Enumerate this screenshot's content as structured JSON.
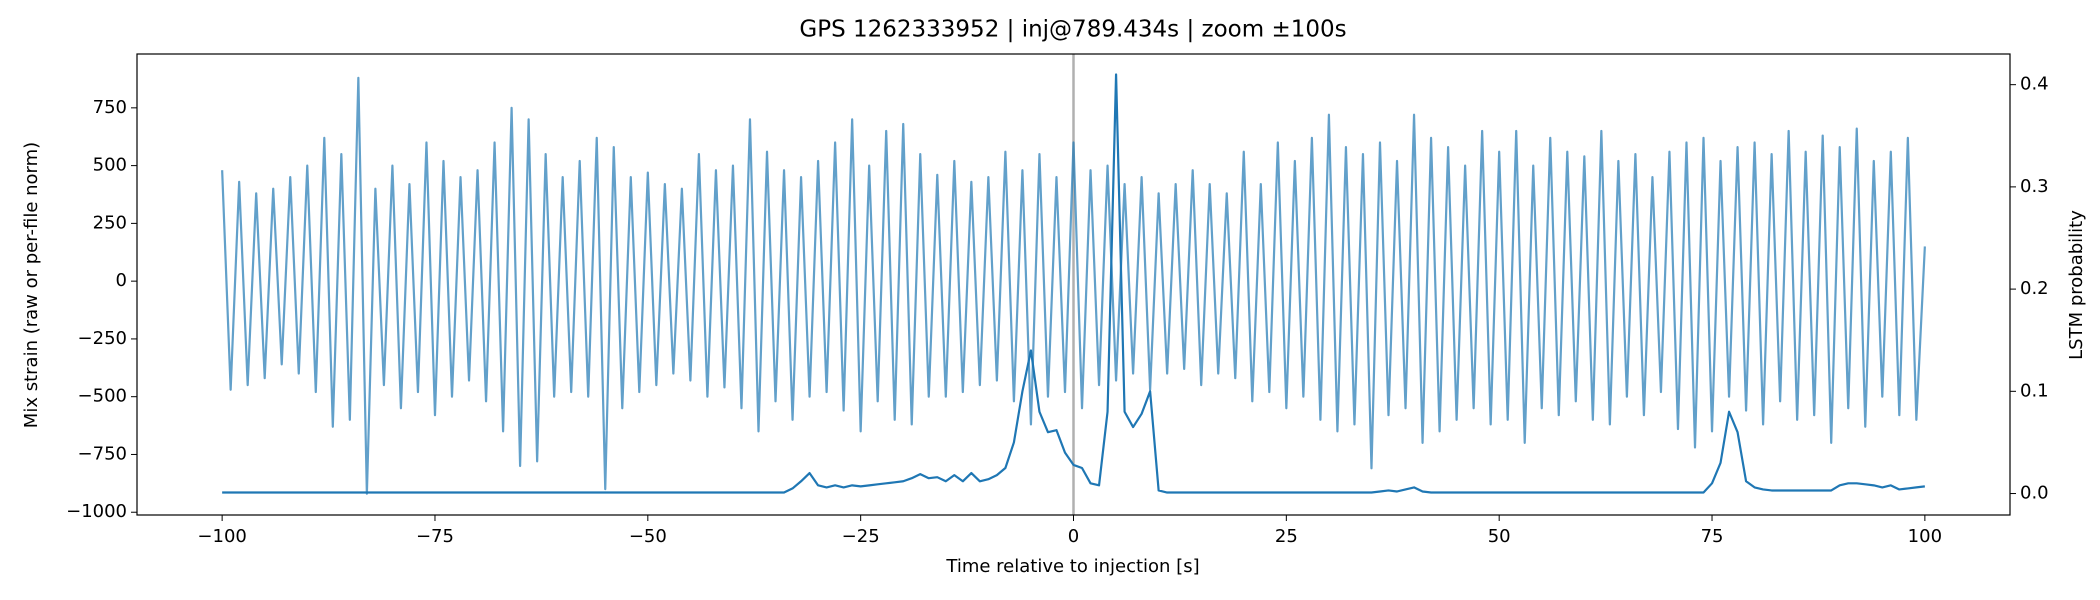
{
  "chart_data": {
    "type": "line",
    "title": "GPS 1262333952 | inj@789.434s | zoom ±100s",
    "xlabel": "Time relative to injection [s]",
    "ylabel": "Mix strain (raw or per-file norm)",
    "y2label": "LSTM probability",
    "xlim": [
      -110,
      110
    ],
    "ylim": [
      -1012,
      983
    ],
    "y2lim": [
      -0.021,
      0.43
    ],
    "xticks": [
      {
        "value": -100,
        "label": "−100"
      },
      {
        "value": -75,
        "label": "−75"
      },
      {
        "value": -50,
        "label": "−50"
      },
      {
        "value": -25,
        "label": "−25"
      },
      0,
      25,
      50,
      75,
      100
    ],
    "yticks": [
      {
        "value": -1000,
        "label": "−1000"
      },
      {
        "value": -750,
        "label": "−750"
      },
      {
        "value": -500,
        "label": "−500"
      },
      {
        "value": -250,
        "label": "−250"
      },
      0,
      250,
      500,
      750
    ],
    "y2ticks": [
      {
        "value": 0,
        "label": "0.0"
      },
      0.1,
      0.2,
      0.3,
      0.4
    ],
    "vline": 0,
    "vline_color": "#b0b0b0",
    "x": [
      -100,
      -99,
      -98,
      -97,
      -96,
      -95,
      -94,
      -93,
      -92,
      -91,
      -90,
      -89,
      -88,
      -87,
      -86,
      -85,
      -84,
      -83,
      -82,
      -81,
      -80,
      -79,
      -78,
      -77,
      -76,
      -75,
      -74,
      -73,
      -72,
      -71,
      -70,
      -69,
      -68,
      -67,
      -66,
      -65,
      -64,
      -63,
      -62,
      -61,
      -60,
      -59,
      -58,
      -57,
      -56,
      -55,
      -54,
      -53,
      -52,
      -51,
      -50,
      -49,
      -48,
      -47,
      -46,
      -45,
      -44,
      -43,
      -42,
      -41,
      -40,
      -39,
      -38,
      -37,
      -36,
      -35,
      -34,
      -33,
      -32,
      -31,
      -30,
      -29,
      -28,
      -27,
      -26,
      -25,
      -24,
      -23,
      -22,
      -21,
      -20,
      -19,
      -18,
      -17,
      -16,
      -15,
      -14,
      -13,
      -12,
      -11,
      -10,
      -9,
      -8,
      -7,
      -6,
      -5,
      -4,
      -3,
      -2,
      -1,
      0,
      1,
      2,
      3,
      4,
      5,
      6,
      7,
      8,
      9,
      10,
      11,
      12,
      13,
      14,
      15,
      16,
      17,
      18,
      19,
      20,
      21,
      22,
      23,
      24,
      25,
      26,
      27,
      28,
      29,
      30,
      31,
      32,
      33,
      34,
      35,
      36,
      37,
      38,
      39,
      40,
      41,
      42,
      43,
      44,
      45,
      46,
      47,
      48,
      49,
      50,
      51,
      52,
      53,
      54,
      55,
      56,
      57,
      58,
      59,
      60,
      61,
      62,
      63,
      64,
      65,
      66,
      67,
      68,
      69,
      70,
      71,
      72,
      73,
      74,
      75,
      76,
      77,
      78,
      79,
      80,
      81,
      82,
      83,
      84,
      85,
      86,
      87,
      88,
      89,
      90,
      91,
      92,
      93,
      94,
      95,
      96,
      97,
      98,
      99,
      100
    ],
    "series": [
      {
        "axis": "y",
        "color": "#1f77b4",
        "opacity": 0.7,
        "values": [
          480,
          -470,
          430,
          -450,
          380,
          -420,
          400,
          -360,
          450,
          -400,
          500,
          -480,
          620,
          -630,
          550,
          -600,
          880,
          -920,
          400,
          -450,
          500,
          -550,
          420,
          -480,
          600,
          -580,
          520,
          -500,
          450,
          -430,
          480,
          -520,
          600,
          -650,
          750,
          -800,
          700,
          -780,
          550,
          -500,
          450,
          -480,
          520,
          -500,
          620,
          -900,
          580,
          -550,
          450,
          -480,
          470,
          -450,
          420,
          -400,
          400,
          -430,
          550,
          -500,
          480,
          -460,
          500,
          -550,
          700,
          -650,
          560,
          -520,
          480,
          -600,
          450,
          -500,
          520,
          -480,
          600,
          -560,
          700,
          -650,
          500,
          -520,
          650,
          -600,
          680,
          -620,
          550,
          -500,
          460,
          -500,
          520,
          -480,
          430,
          -450,
          450,
          -430,
          560,
          -520,
          480,
          -620,
          550,
          -500,
          450,
          -480,
          600,
          -550,
          480,
          -450,
          500,
          -430,
          420,
          -400,
          450,
          -470,
          380,
          -400,
          420,
          -380,
          480,
          -450,
          420,
          -400,
          380,
          -420,
          560,
          -520,
          420,
          -480,
          600,
          -550,
          520,
          -500,
          620,
          -600,
          720,
          -650,
          580,
          -620,
          550,
          -810,
          600,
          -580,
          520,
          -550,
          720,
          -700,
          620,
          -650,
          580,
          -600,
          500,
          -550,
          650,
          -620,
          560,
          -600,
          650,
          -700,
          500,
          -550,
          620,
          -580,
          560,
          -520,
          540,
          -600,
          650,
          -620,
          520,
          -500,
          550,
          -580,
          450,
          -480,
          560,
          -640,
          600,
          -720,
          620,
          -650,
          520,
          -500,
          580,
          -560,
          600,
          -620,
          550,
          -520,
          650,
          -600,
          560,
          -580,
          630,
          -700,
          580,
          -550,
          660,
          -630,
          520,
          -500,
          560,
          -580,
          620,
          -600,
          150
        ]
      },
      {
        "axis": "y2",
        "color": "#1f77b4",
        "opacity": 1,
        "values": [
          0.001,
          0.001,
          0.001,
          0.001,
          0.001,
          0.001,
          0.001,
          0.001,
          0.001,
          0.001,
          0.001,
          0.001,
          0.001,
          0.001,
          0.001,
          0.001,
          0.001,
          0.001,
          0.001,
          0.001,
          0.001,
          0.001,
          0.001,
          0.001,
          0.001,
          0.001,
          0.001,
          0.001,
          0.001,
          0.001,
          0.001,
          0.001,
          0.001,
          0.001,
          0.001,
          0.001,
          0.001,
          0.001,
          0.001,
          0.001,
          0.001,
          0.001,
          0.001,
          0.001,
          0.001,
          0.001,
          0.001,
          0.001,
          0.001,
          0.001,
          0.001,
          0.001,
          0.001,
          0.001,
          0.001,
          0.001,
          0.001,
          0.001,
          0.001,
          0.001,
          0.001,
          0.001,
          0.001,
          0.001,
          0.001,
          0.001,
          0.001,
          0.005,
          0.012,
          0.02,
          0.008,
          0.006,
          0.008,
          0.006,
          0.008,
          0.007,
          0.008,
          0.009,
          0.01,
          0.011,
          0.012,
          0.015,
          0.019,
          0.015,
          0.016,
          0.012,
          0.018,
          0.012,
          0.02,
          0.012,
          0.014,
          0.018,
          0.025,
          0.05,
          0.1,
          0.14,
          0.08,
          0.06,
          0.062,
          0.04,
          0.028,
          0.025,
          0.01,
          0.008,
          0.08,
          0.41,
          0.08,
          0.065,
          0.078,
          0.1,
          0.003,
          0.001,
          0.001,
          0.001,
          0.001,
          0.001,
          0.001,
          0.001,
          0.001,
          0.001,
          0.001,
          0.001,
          0.001,
          0.001,
          0.001,
          0.001,
          0.001,
          0.001,
          0.001,
          0.001,
          0.001,
          0.001,
          0.001,
          0.001,
          0.001,
          0.001,
          0.002,
          0.003,
          0.002,
          0.004,
          0.006,
          0.002,
          0.001,
          0.001,
          0.001,
          0.001,
          0.001,
          0.001,
          0.001,
          0.001,
          0.001,
          0.001,
          0.001,
          0.001,
          0.001,
          0.001,
          0.001,
          0.001,
          0.001,
          0.001,
          0.001,
          0.001,
          0.001,
          0.001,
          0.001,
          0.001,
          0.001,
          0.001,
          0.001,
          0.001,
          0.001,
          0.001,
          0.001,
          0.001,
          0.001,
          0.01,
          0.03,
          0.08,
          0.06,
          0.012,
          0.006,
          0.004,
          0.003,
          0.003,
          0.003,
          0.003,
          0.003,
          0.003,
          0.003,
          0.003,
          0.008,
          0.01,
          0.01,
          0.009,
          0.008,
          0.006,
          0.008,
          0.004,
          0.005,
          0.006,
          0.007
        ]
      }
    ]
  }
}
